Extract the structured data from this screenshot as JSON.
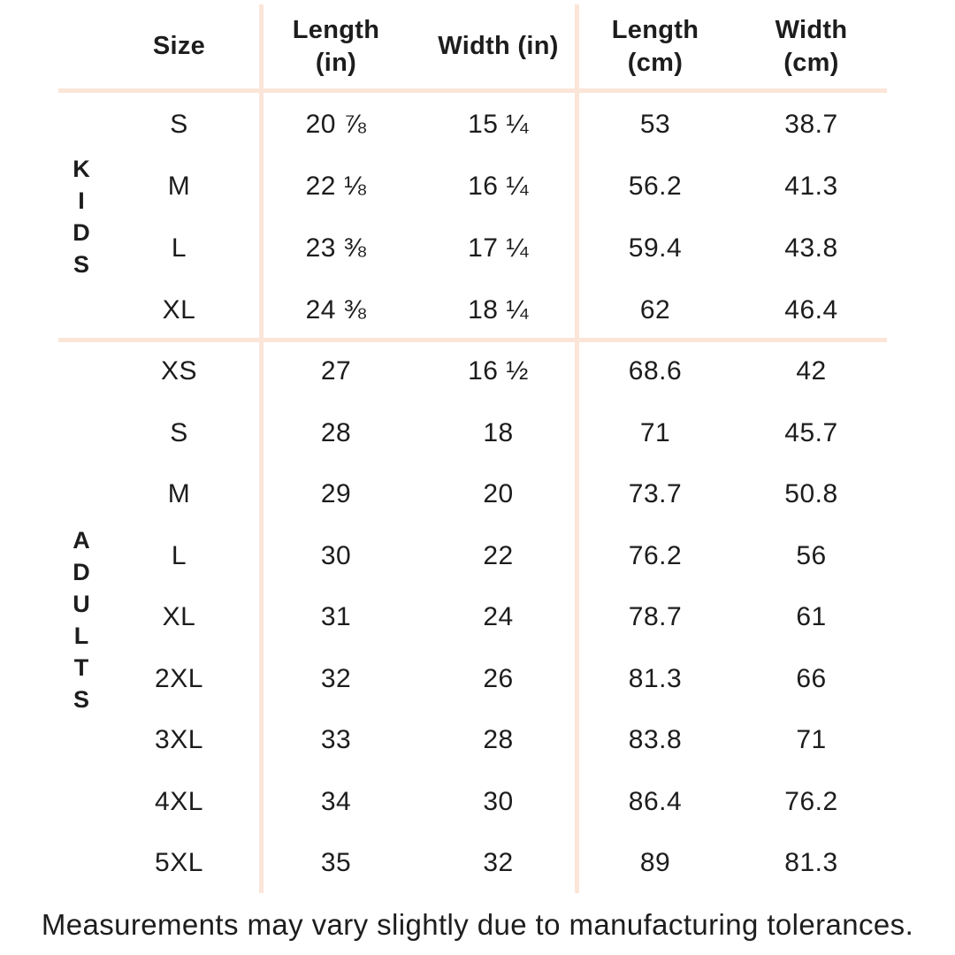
{
  "colors": {
    "background": "#ffffff",
    "line": "#fbe5d8",
    "text": "#1d1d1d"
  },
  "chart_data": {
    "type": "table",
    "columns": [
      "Size",
      "Length (in)",
      "Width (in)",
      "Length (cm)",
      "Width (cm)"
    ],
    "row_groups": [
      {
        "group": "KIDS",
        "rows": [
          [
            "S",
            "20 ⅞",
            "15 ¼",
            "53",
            "38.7"
          ],
          [
            "M",
            "22 ⅛",
            "16 ¼",
            "56.2",
            "41.3"
          ],
          [
            "L",
            "23 ⅜",
            "17 ¼",
            "59.4",
            "43.8"
          ],
          [
            "XL",
            "24 ⅜",
            "18 ¼",
            "62",
            "46.4"
          ]
        ]
      },
      {
        "group": "ADULTS",
        "rows": [
          [
            "XS",
            "27",
            "16 ½",
            "68.6",
            "42"
          ],
          [
            "S",
            "28",
            "18",
            "71",
            "45.7"
          ],
          [
            "M",
            "29",
            "20",
            "73.7",
            "50.8"
          ],
          [
            "L",
            "30",
            "22",
            "76.2",
            "56"
          ],
          [
            "XL",
            "31",
            "24",
            "78.7",
            "61"
          ],
          [
            "2XL",
            "32",
            "26",
            "81.3",
            "66"
          ],
          [
            "3XL",
            "33",
            "28",
            "83.8",
            "71"
          ],
          [
            "4XL",
            "34",
            "30",
            "86.4",
            "76.2"
          ],
          [
            "5XL",
            "35",
            "32",
            "89",
            "81.3"
          ]
        ]
      }
    ],
    "footnote": "Measurements may vary slightly due to manufacturing tolerances."
  }
}
